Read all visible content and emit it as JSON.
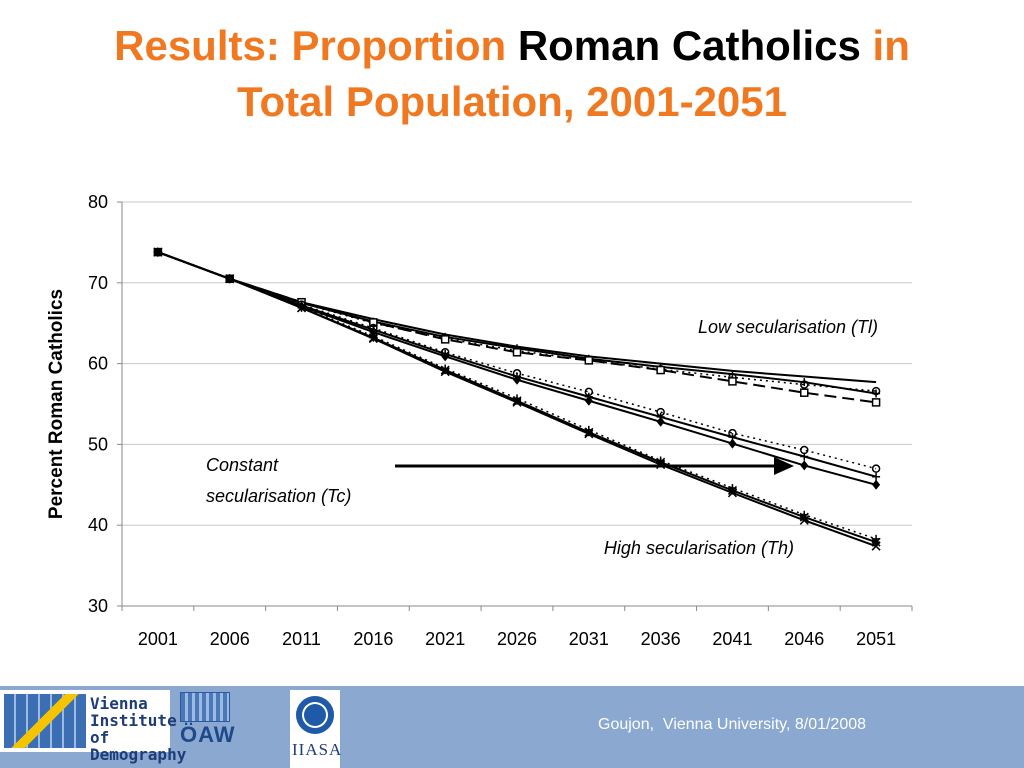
{
  "slide": {
    "title_part1": "Results: Proportion ",
    "title_part2": "Roman Catholics",
    "title_part3": " in",
    "title_line2": "Total Population, 2001-2051",
    "footer_text": "Goujon,  Vienna University, 8/01/2008"
  },
  "logos": {
    "vid_line1": "Vienna",
    "vid_line2": "Institute of",
    "vid_line3": "Demography",
    "oaw": "ÖAW",
    "iiasa": "IIASA"
  },
  "colors": {
    "title_orange": "#f07820",
    "footer_blue": "#8aa8d0"
  },
  "chart_data": {
    "type": "line",
    "ylabel": "Percent Roman Catholics",
    "xlabel": "",
    "ylim": [
      30,
      80
    ],
    "yticks": [
      30,
      40,
      50,
      60,
      70,
      80
    ],
    "categories": [
      "2001",
      "2006",
      "2011",
      "2016",
      "2021",
      "2026",
      "2031",
      "2036",
      "2041",
      "2046",
      "2051"
    ],
    "grid": "horizontal",
    "annotations": [
      {
        "text": "Low secularisation (Tl)"
      },
      {
        "text": "Constant"
      },
      {
        "text": "secularisation (Tc)"
      },
      {
        "text": "High secularisation (Th)"
      }
    ],
    "series": [
      {
        "group": "Tl",
        "marker": "none",
        "dash": "solid",
        "values": [
          73.8,
          70.5,
          67.6,
          65.5,
          63.6,
          62.1,
          60.9,
          60.0,
          59.1,
          58.4,
          57.7
        ]
      },
      {
        "group": "Tl",
        "marker": "plus",
        "dash": "solid",
        "values": [
          73.8,
          70.5,
          67.5,
          65.2,
          63.3,
          61.9,
          60.6,
          59.6,
          58.7,
          57.7,
          56.3
        ]
      },
      {
        "group": "Tl",
        "marker": "circle",
        "dash": "dotted",
        "values": [
          73.8,
          70.5,
          67.5,
          65.0,
          63.1,
          61.6,
          60.4,
          59.3,
          58.3,
          57.4,
          56.6
        ]
      },
      {
        "group": "Tl",
        "marker": "square",
        "dash": "dashed",
        "values": [
          73.8,
          70.5,
          67.6,
          65.1,
          63.0,
          61.4,
          60.4,
          59.2,
          57.8,
          56.4,
          55.2
        ]
      },
      {
        "group": "Tc",
        "marker": "plus",
        "dash": "solid",
        "values": [
          73.8,
          70.5,
          67.2,
          64.2,
          61.2,
          58.4,
          55.9,
          53.4,
          50.9,
          48.5,
          46.0
        ]
      },
      {
        "group": "Tc",
        "marker": "diamond",
        "dash": "solid",
        "values": [
          73.8,
          70.5,
          67.1,
          63.9,
          60.9,
          58.0,
          55.4,
          52.8,
          50.1,
          47.4,
          45.0
        ]
      },
      {
        "group": "Tc",
        "marker": "circle",
        "dash": "dotted",
        "values": [
          73.8,
          70.5,
          67.3,
          64.4,
          61.4,
          58.8,
          56.5,
          54.0,
          51.4,
          49.3,
          47.0
        ]
      },
      {
        "group": "Th",
        "marker": "star",
        "dash": "solid",
        "values": [
          73.8,
          70.5,
          66.9,
          63.2,
          59.2,
          55.4,
          51.5,
          47.8,
          44.3,
          41.0,
          37.9
        ]
      },
      {
        "group": "Th",
        "marker": "x",
        "dash": "solid",
        "values": [
          73.8,
          70.5,
          66.9,
          63.1,
          59.0,
          55.2,
          51.3,
          47.5,
          44.0,
          40.6,
          37.4
        ]
      },
      {
        "group": "Th",
        "marker": "plus",
        "dash": "dotted",
        "values": [
          73.8,
          70.5,
          67.0,
          63.4,
          59.4,
          55.7,
          51.8,
          48.0,
          44.6,
          41.3,
          38.3
        ]
      }
    ]
  }
}
